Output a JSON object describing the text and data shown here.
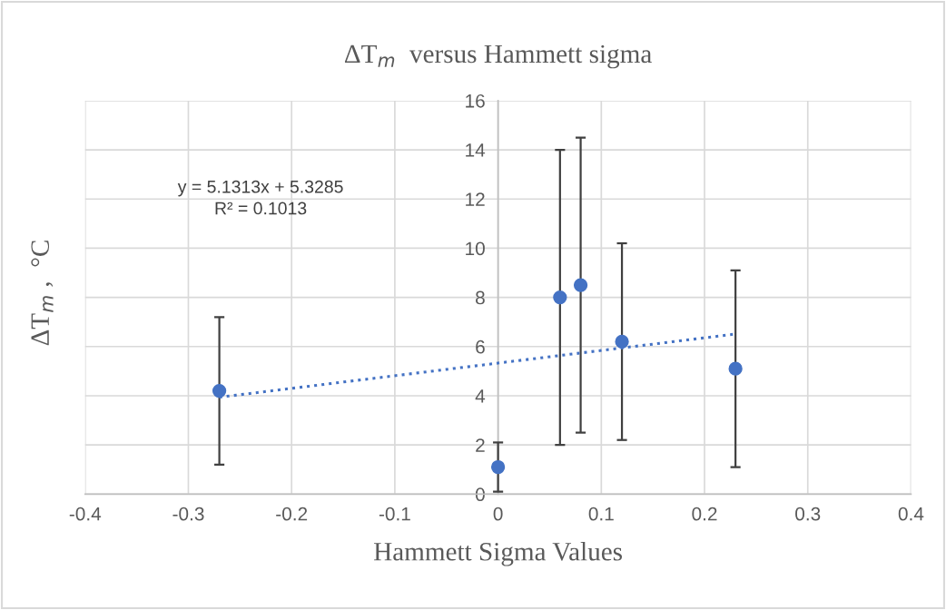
{
  "chart_data": {
    "type": "scatter",
    "title": "ΔT$_{m}$  versus Hammett sigma",
    "xlabel": "Hammett Sigma Values",
    "ylabel": "ΔT$_{m}$ ,  °C",
    "series": [
      {
        "color": "#4472c4",
        "marker": "circle",
        "x": [
          -0.27,
          0,
          0.06,
          0.08,
          0.12,
          0.23
        ],
        "values": [
          4.2,
          1.1,
          8.0,
          8.5,
          6.2,
          5.1
        ],
        "errors": [
          3,
          1,
          6,
          6,
          4,
          4
        ]
      },
      {
        "type": "line",
        "color": "#4472c4",
        "line_style": "dotted",
        "marker": "none",
        "x": [
          -0.27,
          0.23
        ],
        "values": [
          3.94,
          6.51
        ]
      }
    ],
    "xlim": [
      -0.4,
      0.4
    ],
    "xticks": [
      -0.4,
      -0.3,
      -0.2,
      -0.1,
      0,
      0.1,
      0.2,
      0.3,
      0.4
    ],
    "ylim": [
      0,
      16
    ],
    "yticks": [
      0,
      2,
      4,
      6,
      8,
      10,
      12,
      14,
      16
    ],
    "grid": true,
    "annotations": [
      "y = 5.1313x + 5.3285\nR² = 0.1013"
    ]
  }
}
